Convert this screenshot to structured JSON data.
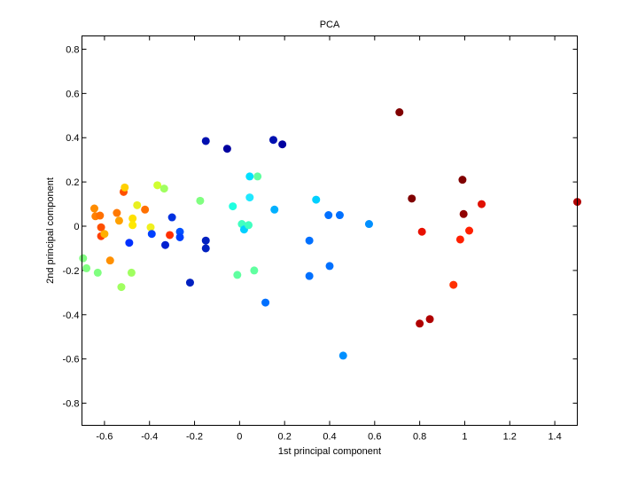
{
  "chart_data": {
    "type": "scatter",
    "title": "PCA",
    "xlabel": "1st principal component",
    "ylabel": "2nd principal component",
    "xlim": [
      -0.7,
      1.5
    ],
    "ylim": [
      -0.9,
      0.86
    ],
    "xticks": [
      -0.6,
      -0.4,
      -0.2,
      0,
      0.2,
      0.4,
      0.6,
      0.8,
      1,
      1.2,
      1.4
    ],
    "xtick_labels": [
      "-0.6",
      "-0.4",
      "-0.2",
      "0",
      "0.2",
      "0.4",
      "0.6",
      "0.8",
      "1",
      "1.2",
      "1.4"
    ],
    "yticks": [
      -0.8,
      -0.6,
      -0.4,
      -0.2,
      0,
      0.2,
      0.4,
      0.6,
      0.8
    ],
    "ytick_labels": [
      "-0.8",
      "-0.6",
      "-0.4",
      "-0.2",
      "0",
      "0.2",
      "0.4",
      "0.6",
      "0.8"
    ],
    "grid": false,
    "legend": "none",
    "colormap": "jet",
    "points": [
      {
        "x": -0.645,
        "y": 0.08,
        "color": "#ff8c00"
      },
      {
        "x": -0.64,
        "y": 0.045,
        "color": "#ff8000"
      },
      {
        "x": -0.62,
        "y": 0.048,
        "color": "#ff7000"
      },
      {
        "x": -0.615,
        "y": -0.005,
        "color": "#ff5000"
      },
      {
        "x": -0.615,
        "y": -0.045,
        "color": "#ff4000"
      },
      {
        "x": -0.6,
        "y": -0.035,
        "color": "#ffb000"
      },
      {
        "x": -0.575,
        "y": -0.155,
        "color": "#ff9000"
      },
      {
        "x": -0.545,
        "y": 0.06,
        "color": "#ff7800"
      },
      {
        "x": -0.535,
        "y": 0.025,
        "color": "#ffa000"
      },
      {
        "x": -0.525,
        "y": -0.275,
        "color": "#a0ff60"
      },
      {
        "x": -0.515,
        "y": 0.155,
        "color": "#ff5000"
      },
      {
        "x": -0.51,
        "y": 0.175,
        "color": "#ffd000"
      },
      {
        "x": -0.49,
        "y": -0.075,
        "color": "#0030ff"
      },
      {
        "x": -0.48,
        "y": -0.21,
        "color": "#a0ff60"
      },
      {
        "x": -0.475,
        "y": 0.035,
        "color": "#ffe000"
      },
      {
        "x": -0.475,
        "y": 0.005,
        "color": "#ffe800"
      },
      {
        "x": -0.455,
        "y": 0.095,
        "color": "#e8f020"
      },
      {
        "x": -0.42,
        "y": 0.075,
        "color": "#ff7000"
      },
      {
        "x": -0.395,
        "y": -0.005,
        "color": "#f0f020"
      },
      {
        "x": -0.39,
        "y": -0.035,
        "color": "#0040ff"
      },
      {
        "x": -0.365,
        "y": 0.185,
        "color": "#d0ff30"
      },
      {
        "x": -0.335,
        "y": 0.17,
        "color": "#a0ff60"
      },
      {
        "x": -0.33,
        "y": -0.085,
        "color": "#0020d0"
      },
      {
        "x": -0.31,
        "y": -0.04,
        "color": "#ff3000"
      },
      {
        "x": -0.3,
        "y": 0.04,
        "color": "#0030e0"
      },
      {
        "x": -0.265,
        "y": -0.025,
        "color": "#0050ff"
      },
      {
        "x": -0.265,
        "y": -0.05,
        "color": "#0040ff"
      },
      {
        "x": -0.22,
        "y": -0.255,
        "color": "#0020c0"
      },
      {
        "x": -0.175,
        "y": 0.115,
        "color": "#80ff80"
      },
      {
        "x": -0.15,
        "y": 0.385,
        "color": "#0010b0"
      },
      {
        "x": -0.15,
        "y": -0.065,
        "color": "#0020c0"
      },
      {
        "x": -0.15,
        "y": -0.1,
        "color": "#0020c0"
      },
      {
        "x": -0.055,
        "y": 0.35,
        "color": "#0000a0"
      },
      {
        "x": -0.03,
        "y": 0.09,
        "color": "#20ffe0"
      },
      {
        "x": -0.01,
        "y": -0.22,
        "color": "#60ffa0"
      },
      {
        "x": 0.01,
        "y": 0.01,
        "color": "#40ffc0"
      },
      {
        "x": 0.02,
        "y": -0.015,
        "color": "#00d0ff"
      },
      {
        "x": 0.04,
        "y": 0.005,
        "color": "#40ffc0"
      },
      {
        "x": 0.045,
        "y": 0.13,
        "color": "#20e8ff"
      },
      {
        "x": 0.045,
        "y": 0.225,
        "color": "#00e0ff"
      },
      {
        "x": 0.065,
        "y": -0.2,
        "color": "#60ffa0"
      },
      {
        "x": 0.08,
        "y": 0.225,
        "color": "#60ffa0"
      },
      {
        "x": 0.115,
        "y": -0.345,
        "color": "#0070ff"
      },
      {
        "x": 0.15,
        "y": 0.39,
        "color": "#0010b0"
      },
      {
        "x": 0.155,
        "y": 0.075,
        "color": "#00b0ff"
      },
      {
        "x": 0.19,
        "y": 0.37,
        "color": "#0000a0"
      },
      {
        "x": 0.31,
        "y": -0.065,
        "color": "#0070ff"
      },
      {
        "x": 0.31,
        "y": -0.225,
        "color": "#0070ff"
      },
      {
        "x": 0.34,
        "y": 0.12,
        "color": "#00d0ff"
      },
      {
        "x": 0.395,
        "y": 0.05,
        "color": "#0070ff"
      },
      {
        "x": 0.4,
        "y": -0.18,
        "color": "#0070ff"
      },
      {
        "x": 0.445,
        "y": 0.05,
        "color": "#0070ff"
      },
      {
        "x": 0.46,
        "y": -0.585,
        "color": "#0090ff"
      },
      {
        "x": 0.575,
        "y": 0.01,
        "color": "#0090ff"
      },
      {
        "x": 0.71,
        "y": 0.515,
        "color": "#800000"
      },
      {
        "x": 0.765,
        "y": 0.125,
        "color": "#800000"
      },
      {
        "x": 0.8,
        "y": -0.44,
        "color": "#b00000"
      },
      {
        "x": 0.81,
        "y": -0.025,
        "color": "#e81000"
      },
      {
        "x": 0.845,
        "y": -0.42,
        "color": "#b00000"
      },
      {
        "x": 0.95,
        "y": -0.265,
        "color": "#ff3000"
      },
      {
        "x": 0.98,
        "y": -0.06,
        "color": "#ff2000"
      },
      {
        "x": 0.99,
        "y": 0.21,
        "color": "#800000"
      },
      {
        "x": 0.995,
        "y": 0.055,
        "color": "#900000"
      },
      {
        "x": 1.02,
        "y": -0.02,
        "color": "#ff2000"
      },
      {
        "x": 1.075,
        "y": 0.1,
        "color": "#e01000"
      },
      {
        "x": 1.5,
        "y": 0.11,
        "color": "#b00000"
      },
      {
        "x": -0.695,
        "y": -0.145,
        "color": "#80ff80"
      },
      {
        "x": -0.68,
        "y": -0.19,
        "color": "#80ff80"
      },
      {
        "x": -0.63,
        "y": -0.21,
        "color": "#80ff80"
      }
    ]
  }
}
